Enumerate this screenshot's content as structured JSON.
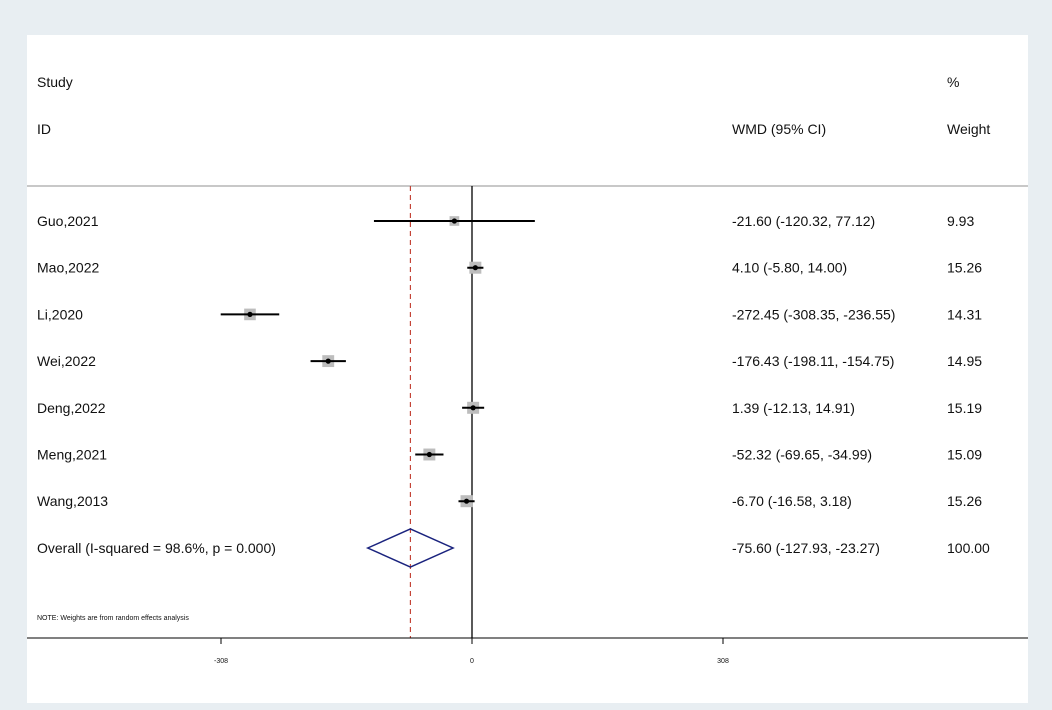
{
  "chart_data": {
    "type": "forest",
    "header": {
      "study_line1": "Study",
      "study_line2": "ID",
      "effect_label": "WMD (95% CI)",
      "weight_line1": "%",
      "weight_line2": "Weight"
    },
    "studies": [
      {
        "name": "Guo,2021",
        "est": -21.6,
        "lo": -120.32,
        "hi": 77.12,
        "ci_text": "-21.60 (-120.32, 77.12)",
        "weight": 9.93,
        "weight_text": "9.93"
      },
      {
        "name": "Mao,2022",
        "est": 4.1,
        "lo": -5.8,
        "hi": 14.0,
        "ci_text": "4.10 (-5.80, 14.00)",
        "weight": 15.26,
        "weight_text": "15.26"
      },
      {
        "name": "Li,2020",
        "est": -272.45,
        "lo": -308.35,
        "hi": -236.55,
        "ci_text": "-272.45 (-308.35, -236.55)",
        "weight": 14.31,
        "weight_text": "14.31"
      },
      {
        "name": "Wei,2022",
        "est": -176.43,
        "lo": -198.11,
        "hi": -154.75,
        "ci_text": "-176.43 (-198.11, -154.75)",
        "weight": 14.95,
        "weight_text": "14.95"
      },
      {
        "name": "Deng,2022",
        "est": 1.39,
        "lo": -12.13,
        "hi": 14.91,
        "ci_text": "1.39 (-12.13, 14.91)",
        "weight": 15.19,
        "weight_text": "15.19"
      },
      {
        "name": "Meng,2021",
        "est": -52.32,
        "lo": -69.65,
        "hi": -34.99,
        "ci_text": "-52.32 (-69.65, -34.99)",
        "weight": 15.09,
        "weight_text": "15.09"
      },
      {
        "name": "Wang,2013",
        "est": -6.7,
        "lo": -16.58,
        "hi": 3.18,
        "ci_text": "-6.70 (-16.58, 3.18)",
        "weight": 15.26,
        "weight_text": "15.26"
      }
    ],
    "overall": {
      "label": "Overall  (I-squared = 98.6%, p = 0.000)",
      "est": -75.6,
      "lo": -127.93,
      "hi": -23.27,
      "ci_text": "-75.60 (-127.93, -23.27)",
      "weight_text": "100.00"
    },
    "note": "NOTE: Weights are from random effects analysis",
    "x_ticks": [
      -308,
      0,
      308
    ],
    "x_tick_labels": [
      "-308",
      "0",
      "308"
    ],
    "xlim": [
      -308,
      308
    ],
    "reference_line": 0,
    "colors": {
      "panel": "#ffffff",
      "background": "#e8eef2",
      "ci_line": "#000000",
      "weight_box": "#bdbdbd",
      "overall_diamond": "#1a237e",
      "overall_dashed_line": "#c0392b",
      "header_rule": "#c8c8c8"
    }
  }
}
